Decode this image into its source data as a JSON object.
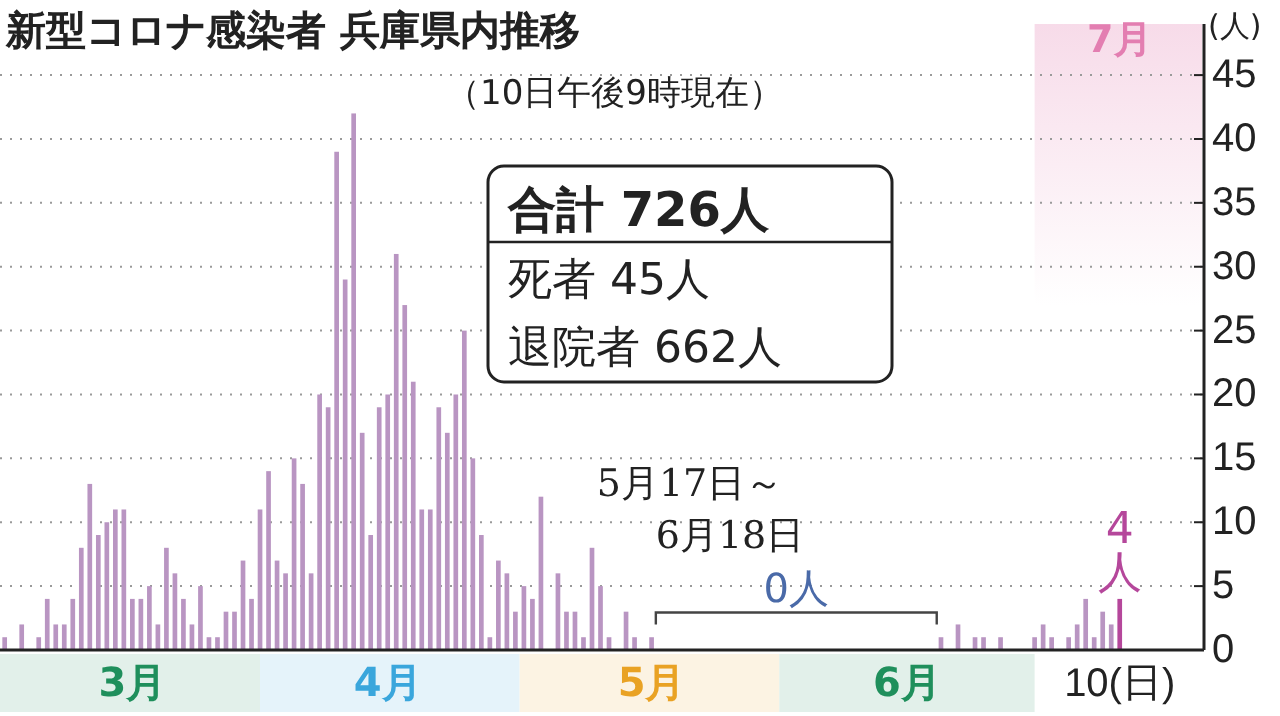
{
  "chart_data": {
    "type": "bar",
    "title": "新型コロナ感染者 兵庫県内推移",
    "subtitle": "（10日午後9時現在）",
    "ylabel": "(人)",
    "annotations": [
      "合計 726人",
      "死者 45人",
      "退院者 662人",
      "5月17日～",
      "6月18日",
      "0人",
      "7月"
    ],
    "categories": [
      null,
      null,
      null,
      null,
      null,
      null,
      null,
      null,
      null,
      null,
      null,
      null,
      null,
      null,
      null,
      "3月",
      null,
      null,
      null,
      null,
      null,
      null,
      null,
      null,
      null,
      null,
      null,
      null,
      null,
      null,
      null,
      null,
      null,
      null,
      null,
      null,
      null,
      null,
      null,
      null,
      null,
      null,
      null,
      null,
      null,
      "4月",
      null,
      null,
      null,
      null,
      null,
      null,
      null,
      null,
      null,
      null,
      null,
      null,
      null,
      null,
      null,
      null,
      null,
      null,
      null,
      null,
      null,
      null,
      null,
      null,
      null,
      null,
      null,
      null,
      null,
      null,
      "5月",
      null,
      null,
      null,
      null,
      null,
      null,
      null,
      null,
      null,
      null,
      null,
      null,
      null,
      null,
      null,
      null,
      null,
      null,
      null,
      null,
      null,
      null,
      null,
      null,
      null,
      null,
      null,
      null,
      null,
      "6月",
      null,
      null,
      null,
      null,
      null,
      null,
      null,
      null,
      null,
      null,
      null,
      null,
      null,
      null,
      null,
      null,
      null,
      null,
      null,
      null,
      null,
      null,
      null,
      null,
      "10(日)"
    ],
    "values": [
      1,
      0,
      2,
      0,
      1,
      4,
      2,
      2,
      4,
      8,
      13,
      9,
      10,
      11,
      11,
      4,
      4,
      5,
      2,
      8,
      6,
      4,
      2,
      5,
      1,
      1,
      3,
      3,
      7,
      4,
      11,
      14,
      7,
      6,
      15,
      13,
      6,
      20,
      19,
      39,
      29,
      42,
      17,
      9,
      19,
      20,
      31,
      27,
      21,
      11,
      11,
      19,
      17,
      20,
      25,
      15,
      9,
      1,
      7,
      6,
      3,
      5,
      4,
      12,
      0,
      6,
      3,
      3,
      1,
      8,
      5,
      1,
      0,
      3,
      1,
      0,
      1,
      0,
      0,
      0,
      0,
      0,
      0,
      0,
      0,
      0,
      0,
      0,
      0,
      0,
      0,
      0,
      0,
      0,
      0,
      0,
      0,
      0,
      0,
      0,
      0,
      0,
      0,
      0,
      0,
      0,
      0,
      0,
      0,
      0,
      1,
      0,
      2,
      0,
      1,
      1,
      0,
      1,
      0,
      0,
      0,
      1,
      2,
      1,
      0,
      1,
      2,
      4,
      1,
      3,
      2,
      4
    ],
    "colors": [
      "#b995c2",
      "#b995c2",
      "#b995c2",
      "#b995c2",
      "#b995c2",
      "#b995c2",
      "#b995c2",
      "#b995c2",
      "#b995c2",
      "#b995c2",
      "#b995c2",
      "#b995c2",
      "#b995c2",
      "#b995c2",
      "#b995c2",
      "#b995c2",
      "#b995c2",
      "#b995c2",
      "#b995c2",
      "#b995c2",
      "#b995c2",
      "#b995c2",
      "#b995c2",
      "#b995c2",
      "#b995c2",
      "#b995c2",
      "#b995c2",
      "#b995c2",
      "#b995c2",
      "#b995c2",
      "#b995c2",
      "#b995c2",
      "#b995c2",
      "#b995c2",
      "#b995c2",
      "#b995c2",
      "#b995c2",
      "#b995c2",
      "#b995c2",
      "#b995c2",
      "#b995c2",
      "#b995c2",
      "#b995c2",
      "#b995c2",
      "#b995c2",
      "#b995c2",
      "#b995c2",
      "#b995c2",
      "#b995c2",
      "#b995c2",
      "#b995c2",
      "#b995c2",
      "#b995c2",
      "#b995c2",
      "#b995c2",
      "#b995c2",
      "#b995c2",
      "#b995c2",
      "#b995c2",
      "#b995c2",
      "#b995c2",
      "#b995c2",
      "#b995c2",
      "#b995c2",
      "#b995c2",
      "#b995c2",
      "#b995c2",
      "#b995c2",
      "#b995c2",
      "#b995c2",
      "#b995c2",
      "#b995c2",
      "#b995c2",
      "#b995c2",
      "#b995c2",
      "#b995c2",
      "#b995c2",
      "#b995c2",
      "#b995c2",
      "#b995c2",
      "#b995c2",
      "#b995c2",
      "#b995c2",
      "#b995c2",
      "#b995c2",
      "#b995c2",
      "#b995c2",
      "#b995c2",
      "#b995c2",
      "#b995c2",
      "#b995c2",
      "#b995c2",
      "#b995c2",
      "#b995c2",
      "#b995c2",
      "#b995c2",
      "#b995c2",
      "#b995c2",
      "#b995c2",
      "#b995c2",
      "#b995c2",
      "#b995c2",
      "#b995c2",
      "#b995c2",
      "#b995c2",
      "#b995c2",
      "#b995c2",
      "#b995c2",
      "#b995c2",
      "#b995c2",
      "#b995c2",
      "#b995c2",
      "#b995c2",
      "#b995c2",
      "#b995c2",
      "#b995c2",
      "#b995c2",
      "#b995c2",
      "#b995c2",
      "#b995c2",
      "#b995c2",
      "#b995c2",
      "#b995c2",
      "#b995c2",
      "#b995c2",
      "#b995c2",
      "#b995c2",
      "#b995c2",
      "#b995c2",
      "#b995c2",
      "#b995c2",
      "#b5479b"
    ],
    "value_labels": [
      null,
      null,
      null,
      null,
      null,
      null,
      null,
      null,
      null,
      null,
      null,
      null,
      null,
      null,
      null,
      null,
      null,
      null,
      null,
      null,
      null,
      null,
      null,
      null,
      null,
      null,
      null,
      null,
      null,
      null,
      null,
      null,
      null,
      null,
      null,
      null,
      null,
      null,
      null,
      null,
      null,
      null,
      null,
      null,
      null,
      null,
      null,
      null,
      null,
      null,
      null,
      null,
      null,
      null,
      null,
      null,
      null,
      null,
      null,
      null,
      null,
      null,
      null,
      null,
      null,
      null,
      null,
      null,
      null,
      null,
      null,
      null,
      null,
      null,
      null,
      null,
      null,
      null,
      null,
      null,
      null,
      null,
      null,
      null,
      null,
      null,
      null,
      null,
      null,
      null,
      null,
      null,
      null,
      null,
      null,
      null,
      null,
      null,
      null,
      null,
      null,
      null,
      null,
      null,
      null,
      null,
      null,
      null,
      null,
      null,
      null,
      null,
      null,
      null,
      null,
      null,
      null,
      null,
      null,
      null,
      null,
      null,
      null,
      null,
      null,
      null,
      null,
      null,
      null,
      null,
      null,
      "4人"
    ],
    "ylim": [
      0,
      49
    ],
    "yticks": [
      0,
      5,
      10,
      15,
      20,
      25,
      30,
      35,
      40,
      45
    ],
    "grid": "y"
  }
}
